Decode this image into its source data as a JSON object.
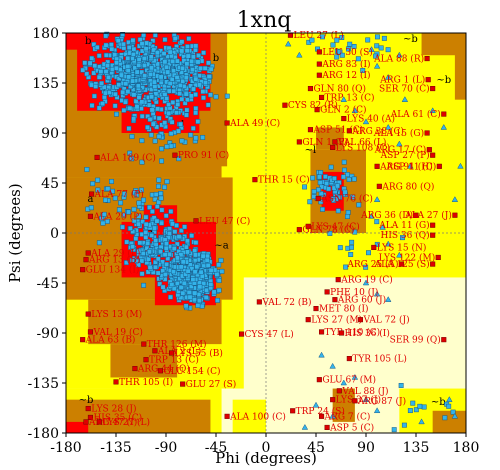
{
  "chart_data": {
    "type": "scatter",
    "title": "1xnq",
    "xlabel": "Phi (degrees)",
    "ylabel": "Psi (degrees)",
    "xlim": [
      -180,
      180
    ],
    "ylim": [
      -180,
      180
    ],
    "x_ticks": [
      -180,
      -135,
      -90,
      -45,
      0,
      45,
      90,
      135,
      180
    ],
    "y_ticks": [
      -180,
      -135,
      -90,
      -45,
      0,
      45,
      90,
      135,
      180
    ],
    "x_tick_labels": [
      "-180",
      "-135",
      "-90",
      "-45",
      "0",
      "45",
      "90",
      "135",
      "180"
    ],
    "y_tick_labels": [
      "-180",
      "-135",
      "-90",
      "-45",
      "0",
      "45",
      "90",
      "135",
      "180"
    ],
    "region_labels": [
      {
        "text": "b",
        "phi": -160,
        "psi": 170
      },
      {
        "text": "b",
        "phi": -45,
        "psi": 155
      },
      {
        "text": "~b",
        "phi": -120,
        "psi": 125
      },
      {
        "text": "l",
        "phi": -75,
        "psi": 95
      },
      {
        "text": "a",
        "phi": -158,
        "psi": 28
      },
      {
        "text": "A",
        "phi": -105,
        "psi": 0
      },
      {
        "text": "~a",
        "phi": -40,
        "psi": -14
      },
      {
        "text": "~l",
        "phi": 40,
        "psi": 72
      },
      {
        "text": "~b",
        "phi": 130,
        "psi": 172
      },
      {
        "text": "~b",
        "phi": 155,
        "psi": -155
      },
      {
        "text": "~b",
        "phi": -162,
        "psi": -153
      },
      {
        "text": "~b",
        "phi": 160,
        "psi": 135
      }
    ],
    "colors": {
      "core": "#ff0000",
      "allowed": "#cc8000",
      "generous": "#ffff00",
      "outside": "#ffffcc",
      "residue_marker": "#33b3ea",
      "glycine_marker": "#33b3ea",
      "outlier_marker": "#dd0000",
      "outlier_label": "#e00000"
    },
    "outliers": [
      {
        "label": "LEU 27 (L)",
        "phi": 22,
        "psi": 178
      },
      {
        "label": "LEU 30 (S)",
        "phi": 48,
        "psi": 163
      },
      {
        "label": "ARG 83 (I)",
        "phi": 48,
        "psi": 152
      },
      {
        "label": "ARG 12 (I)",
        "phi": 48,
        "psi": 142
      },
      {
        "label": "ALA 88 (R)",
        "phi": 145,
        "psi": 157
      },
      {
        "label": "ARG 1 (L)",
        "phi": 146,
        "psi": 138
      },
      {
        "label": "SER 70 (C)",
        "phi": 150,
        "psi": 130
      },
      {
        "label": "GLN 80 (Q)",
        "phi": 40,
        "psi": 130
      },
      {
        "label": "TRP 13 (C)",
        "phi": 50,
        "psi": 122
      },
      {
        "label": "CYS 82 (R)",
        "phi": 17,
        "psi": 115
      },
      {
        "label": "GLN 2 (C)",
        "phi": 46,
        "psi": 111
      },
      {
        "label": "LYS 40 (A)",
        "phi": 70,
        "psi": 103
      },
      {
        "label": "ALA 49 (C)",
        "phi": -35,
        "psi": 99
      },
      {
        "label": "ASP 51 (C)",
        "phi": 40,
        "psi": 93
      },
      {
        "label": "ARG 38 (C)",
        "phi": 75,
        "psi": 92
      },
      {
        "label": "GLN 1 (P)",
        "phi": 30,
        "psi": 82
      },
      {
        "label": "VAL 66 (L)",
        "phi": 62,
        "psi": 82
      },
      {
        "label": "LYS 108 (C)",
        "phi": 60,
        "psi": 77
      },
      {
        "label": "ALA 61 (C)",
        "phi": 160,
        "psi": 107
      },
      {
        "label": "ALA 15 (G)",
        "phi": 145,
        "psi": 90
      },
      {
        "label": "ARG 17 (C)",
        "phi": 147,
        "psi": 75
      },
      {
        "label": "ASP 27 (P)",
        "phi": 150,
        "psi": 70
      },
      {
        "label": "ASP 11 (C)",
        "phi": 156,
        "psi": 60
      },
      {
        "label": "PRO 91 (C)",
        "phi": -82,
        "psi": 70
      },
      {
        "label": "ALA 189 (C)",
        "phi": -152,
        "psi": 68
      },
      {
        "label": "ARG 91 (H)",
        "phi": 100,
        "psi": 60
      },
      {
        "label": "THR 15 (C)",
        "phi": -10,
        "psi": 48
      },
      {
        "label": "ALA 77 (P)",
        "phi": -157,
        "psi": 35
      },
      {
        "label": "ARG 80 (Q)",
        "phi": 102,
        "psi": 42
      },
      {
        "label": "ASN 76 (C)",
        "phi": 47,
        "psi": 31
      },
      {
        "label": "ALA 29 (P)",
        "phi": -158,
        "psi": 15
      },
      {
        "label": "LEU 47 (C)",
        "phi": -63,
        "psi": 11
      },
      {
        "label": "LYS 47 (C)",
        "phi": 38,
        "psi": 6
      },
      {
        "label": "ARG 36 (D)",
        "phi": 135,
        "psi": 16
      },
      {
        "label": "ALA 27 (J)",
        "phi": 170,
        "psi": 16
      },
      {
        "label": "GLN 78 (C)",
        "phi": 30,
        "psi": 3
      },
      {
        "label": "ALA 11 (G)",
        "phi": 150,
        "psi": 7
      },
      {
        "label": "HIS 36 (Q)",
        "phi": 150,
        "psi": -2
      },
      {
        "label": "LYS 15 (N)",
        "phi": 97,
        "psi": -13
      },
      {
        "label": "ALA 29 (L)",
        "phi": -160,
        "psi": -18
      },
      {
        "label": "ARG 13 (B)",
        "phi": -162,
        "psi": -24
      },
      {
        "label": "ARG 25 (A)",
        "phi": 122,
        "psi": -28
      },
      {
        "label": "LYS 122 (M)",
        "phi": 155,
        "psi": -22
      },
      {
        "label": "ALA 125 (S)",
        "phi": 150,
        "psi": -28
      },
      {
        "label": "GLU 134 (I)",
        "phi": -165,
        "psi": -33
      },
      {
        "label": "ARG 19 (C)",
        "phi": 65,
        "psi": -42
      },
      {
        "label": "PHE 10 (J)",
        "phi": 55,
        "psi": -53
      },
      {
        "label": "ARG 60 (J)",
        "phi": 62,
        "psi": -60
      },
      {
        "label": "LYS 13 (M)",
        "phi": -160,
        "psi": -73
      },
      {
        "label": "VAL 72 (B)",
        "phi": -6,
        "psi": -62
      },
      {
        "label": "MET 80 (I)",
        "phi": 45,
        "psi": -68
      },
      {
        "label": "LYS 27 (M)",
        "phi": 38,
        "psi": -78
      },
      {
        "label": "VAL 72 (J)",
        "phi": 85,
        "psi": -78
      },
      {
        "label": "VAL 19 (C)",
        "phi": -158,
        "psi": -89
      },
      {
        "label": "CYS 47 (L)",
        "phi": -22,
        "psi": -91
      },
      {
        "label": "TYR 110 (C)",
        "phi": 50,
        "psi": -89
      },
      {
        "label": "HIS 36 (I)",
        "phi": 68,
        "psi": -90
      },
      {
        "label": "ALA 63 (B)",
        "phi": -165,
        "psi": -96
      },
      {
        "label": "SER 99 (Q)",
        "phi": 160,
        "psi": -96
      },
      {
        "label": "THR 126 (M)",
        "phi": -110,
        "psi": -100
      },
      {
        "label": "ALA 2 (L)",
        "phi": -100,
        "psi": -106
      },
      {
        "label": "LYS 55 (B)",
        "phi": -85,
        "psi": -108
      },
      {
        "label": "TRP 13 (C)",
        "phi": -108,
        "psi": -114
      },
      {
        "label": "TYR 105 (L)",
        "phi": 75,
        "psi": -113
      },
      {
        "label": "ARG 44 (Q)",
        "phi": -118,
        "psi": -122
      },
      {
        "label": "GLU 154 (C)",
        "phi": -95,
        "psi": -124
      },
      {
        "label": "THR 105 (I)",
        "phi": -135,
        "psi": -134
      },
      {
        "label": "GLU 67 (M)",
        "phi": 48,
        "psi": -132
      },
      {
        "label": "GLU 27 (S)",
        "phi": -75,
        "psi": -136
      },
      {
        "label": "VAL 88 (J)",
        "phi": 66,
        "psi": -142
      },
      {
        "label": "LYS 37 (J)",
        "phi": 60,
        "psi": -150
      },
      {
        "label": "ARG 87 (J)",
        "phi": 80,
        "psi": -151
      },
      {
        "label": "TRP 24 (S)",
        "phi": 24,
        "psi": -160
      },
      {
        "label": "LYS 28 (J)",
        "phi": -160,
        "psi": -158
      },
      {
        "label": "ALA 100 (C)",
        "phi": -35,
        "psi": -165
      },
      {
        "label": "HIS 35 (C)",
        "phi": -158,
        "psi": -166
      },
      {
        "label": "ARG 47 (I)",
        "phi": -162,
        "psi": -170
      },
      {
        "label": "LYS 27 (L)",
        "phi": -150,
        "psi": -170
      },
      {
        "label": "ARG 7 (C)",
        "phi": 50,
        "psi": -165
      },
      {
        "label": "ASP 5 (C)",
        "phi": 55,
        "psi": -175
      }
    ],
    "residue_clusters": [
      {
        "phi": -120,
        "psi": 145,
        "spread_phi": 28,
        "spread_psi": 22,
        "count": 520
      },
      {
        "phi": -75,
        "psi": 145,
        "spread_phi": 18,
        "spread_psi": 22,
        "count": 260
      },
      {
        "phi": -65,
        "psi": -40,
        "spread_phi": 14,
        "spread_psi": 14,
        "count": 720
      },
      {
        "phi": -95,
        "psi": -15,
        "spread_phi": 20,
        "spread_psi": 20,
        "count": 200
      },
      {
        "phi": -120,
        "psi": 30,
        "spread_phi": 25,
        "spread_psi": 25,
        "count": 70
      },
      {
        "phi": -90,
        "psi": 100,
        "spread_phi": 25,
        "spread_psi": 22,
        "count": 80
      },
      {
        "phi": 60,
        "psi": 40,
        "spread_phi": 14,
        "spread_psi": 14,
        "count": 55
      },
      {
        "phi": 85,
        "psi": -10,
        "spread_phi": 20,
        "spread_psi": 20,
        "count": 15
      },
      {
        "phi": 80,
        "psi": 165,
        "spread_phi": 30,
        "spread_psi": 12,
        "count": 25
      },
      {
        "phi": 130,
        "psi": -160,
        "spread_phi": 30,
        "spread_psi": 12,
        "count": 12
      }
    ]
  }
}
